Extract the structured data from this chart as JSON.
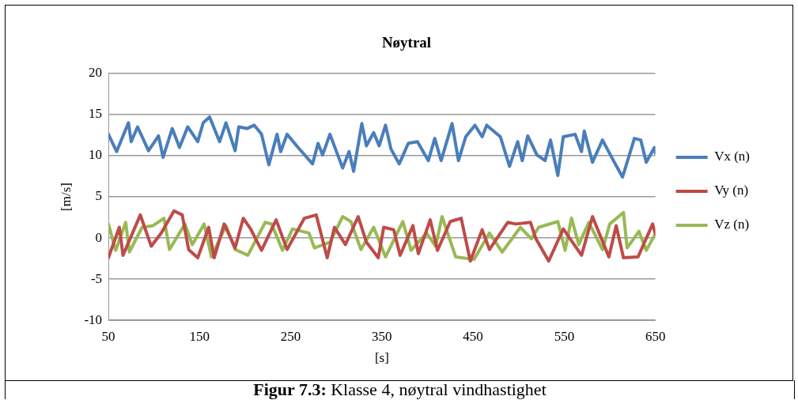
{
  "chart_data": {
    "type": "line",
    "title": "Nøytral",
    "xlabel": "[s]",
    "ylabel": "[m/s]",
    "xlim": [
      50,
      650
    ],
    "xticks": [
      50,
      150,
      250,
      350,
      450,
      550,
      650
    ],
    "ylim": [
      -10,
      20
    ],
    "yticks": [
      -10,
      -5,
      0,
      5,
      10,
      15,
      20
    ],
    "grid": "y",
    "legend": "right",
    "marker": "none",
    "line_style": "solid",
    "annotations": [
      "Figur 7.3: Klasse 4, nøytral vindhastighet"
    ],
    "series": [
      {
        "name": "Vx (n)",
        "color": "#4a7ebb",
        "x": [
          50,
          59,
          72,
          75,
          82,
          94,
          105,
          110,
          120,
          128,
          137,
          148,
          154,
          161,
          172,
          179,
          189,
          193,
          202,
          210,
          218,
          226,
          235,
          239,
          246,
          258,
          274,
          280,
          285,
          293,
          307,
          314,
          319,
          328,
          333,
          341,
          347,
          354,
          360,
          369,
          379,
          389,
          401,
          408,
          415,
          427,
          434,
          442,
          452,
          460,
          465,
          480,
          490,
          499,
          504,
          510,
          520,
          529,
          535,
          543,
          549,
          562,
          569,
          572,
          581,
          592,
          604,
          614,
          627,
          634,
          640,
          649,
          650
        ],
        "values": [
          12.6,
          10.5,
          14.0,
          11.7,
          13.5,
          10.6,
          12.4,
          9.8,
          13.3,
          11.0,
          13.5,
          11.7,
          14.0,
          14.7,
          11.7,
          14.0,
          10.6,
          13.5,
          13.3,
          13.7,
          12.6,
          8.9,
          12.6,
          10.5,
          12.6,
          11.0,
          9.0,
          11.5,
          10.1,
          12.6,
          8.5,
          10.5,
          8.1,
          13.9,
          11.2,
          12.8,
          11.2,
          13.7,
          10.8,
          9.0,
          11.5,
          11.7,
          9.4,
          12.1,
          9.4,
          13.9,
          9.4,
          12.3,
          13.7,
          12.3,
          13.7,
          12.3,
          8.7,
          11.7,
          9.4,
          12.4,
          10.1,
          9.4,
          11.9,
          7.6,
          12.3,
          12.6,
          10.5,
          13.0,
          9.2,
          11.9,
          9.4,
          7.4,
          12.1,
          11.9,
          9.2,
          11.0,
          10.3
        ]
      },
      {
        "name": "Vy (n)",
        "color": "#be4b48",
        "x": [
          50,
          62,
          66,
          85,
          97,
          108,
          122,
          131,
          138,
          148,
          160,
          166,
          177,
          189,
          198,
          206,
          218,
          234,
          246,
          265,
          278,
          290,
          298,
          310,
          324,
          333,
          346,
          352,
          363,
          370,
          384,
          390,
          403,
          411,
          425,
          437,
          447,
          460,
          468,
          488,
          497,
          513,
          519,
          533,
          549,
          569,
          581,
          599,
          607,
          615,
          631,
          647,
          650
        ],
        "values": [
          -2.4,
          1.3,
          -2.1,
          2.8,
          -1.0,
          0.6,
          3.3,
          2.8,
          -1.4,
          -2.4,
          1.3,
          -2.4,
          1.7,
          -1.2,
          2.4,
          1.1,
          -1.5,
          2.2,
          -1.4,
          2.4,
          2.8,
          -2.4,
          1.3,
          -0.8,
          2.6,
          -0.5,
          -2.4,
          1.3,
          1.0,
          -2.1,
          1.5,
          -1.9,
          2.2,
          -1.5,
          2.0,
          2.4,
          -2.8,
          1.0,
          -1.4,
          1.9,
          1.7,
          1.9,
          -0.1,
          -2.8,
          1.1,
          -2.1,
          2.6,
          -2.3,
          1.5,
          -2.4,
          -2.3,
          1.7,
          0.5
        ]
      },
      {
        "name": "Vz (n)",
        "color": "#98b954",
        "x": [
          50,
          58,
          69,
          73,
          87,
          99,
          111,
          117,
          134,
          142,
          155,
          163,
          179,
          189,
          203,
          222,
          229,
          241,
          252,
          270,
          276,
          293,
          307,
          316,
          327,
          341,
          354,
          373,
          382,
          399,
          409,
          416,
          431,
          451,
          468,
          482,
          502,
          514,
          522,
          543,
          551,
          558,
          566,
          577,
          592,
          600,
          615,
          619,
          632,
          640,
          649
        ],
        "values": [
          1.7,
          -1.5,
          1.9,
          -1.7,
          1.3,
          1.5,
          2.4,
          -1.4,
          1.7,
          -0.8,
          1.7,
          -2.3,
          1.5,
          -1.4,
          -2.1,
          1.9,
          1.7,
          -1.5,
          1.1,
          0.6,
          -1.2,
          -0.5,
          2.6,
          2.0,
          -1.4,
          1.3,
          -2.3,
          2.0,
          -1.5,
          0.6,
          -1.0,
          2.6,
          -2.3,
          -2.6,
          0.6,
          -1.7,
          1.3,
          -0.1,
          1.3,
          2.0,
          -1.5,
          2.4,
          -0.8,
          1.9,
          -1.4,
          1.7,
          3.1,
          -1.2,
          0.8,
          -1.5,
          0.3
        ]
      }
    ]
  }
}
